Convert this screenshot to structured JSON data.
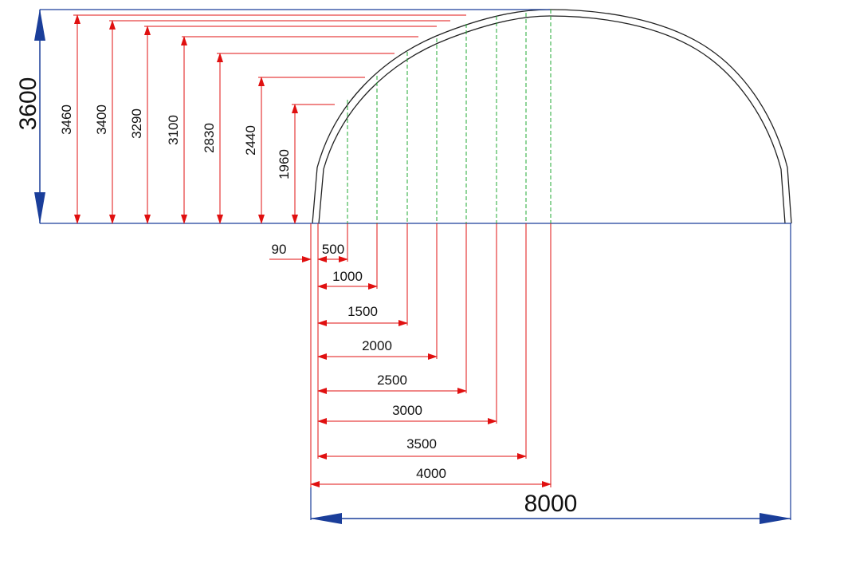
{
  "diagram": {
    "overall_height_label": "3600",
    "overall_width_label": "8000",
    "offset_label": "90",
    "heights": [
      "3460",
      "3400",
      "3290",
      "3100",
      "2830",
      "2440",
      "1960"
    ],
    "widths": [
      "500",
      "1000",
      "1500",
      "2000",
      "2500",
      "3000",
      "3500",
      "4000"
    ]
  },
  "colors": {
    "outline": "#222222",
    "dimension": "#e01010",
    "overall_dimension": "#1a3e9a",
    "guide": "#22aa33"
  }
}
